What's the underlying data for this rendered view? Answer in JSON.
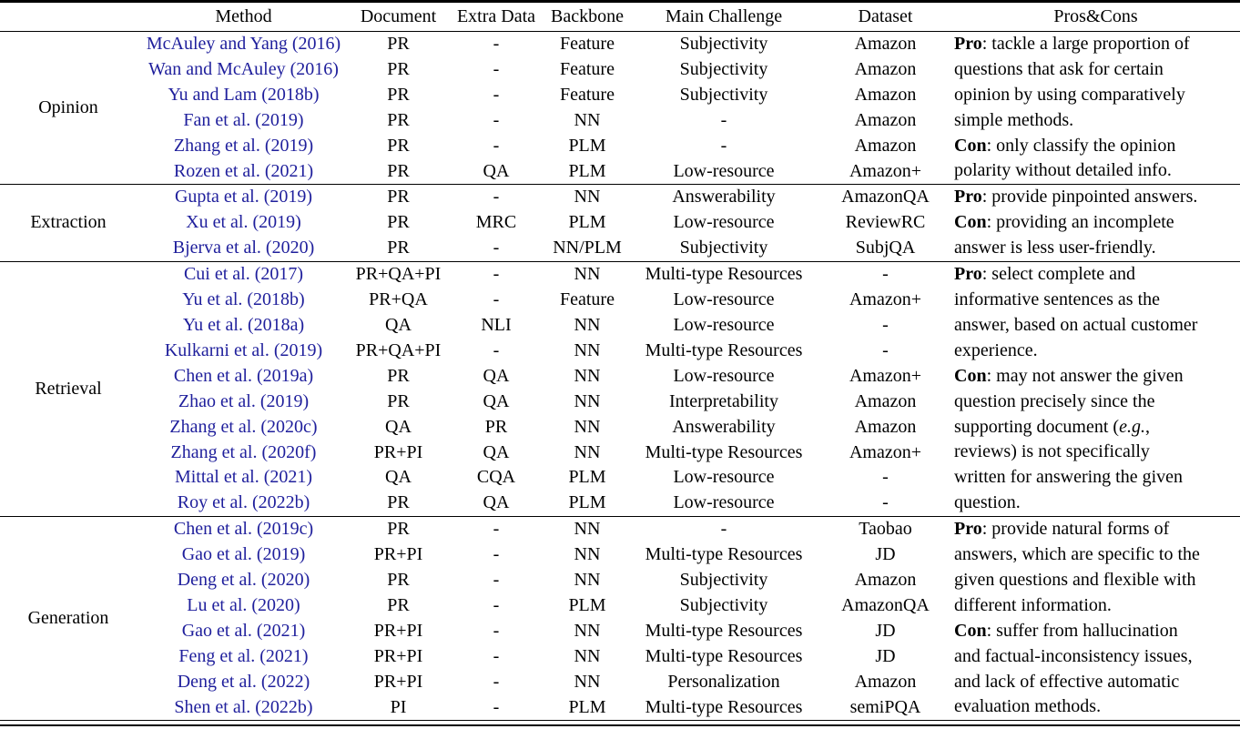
{
  "colors": {
    "citation_link": "#1f1f9c",
    "rule": "#000000",
    "text": "#000000",
    "background": "#ffffff"
  },
  "table": {
    "columns": [
      "",
      "Method",
      "Document",
      "Extra Data",
      "Backbone",
      "Main Challenge",
      "Dataset",
      "Pros&Cons"
    ],
    "sections": [
      {
        "category": "Opinion",
        "rows": [
          {
            "method": "McAuley and Yang (2016)",
            "document": "PR",
            "extra_data": "-",
            "backbone": "Feature",
            "main_challenge": "Subjectivity",
            "dataset": "Amazon"
          },
          {
            "method": "Wan and McAuley (2016)",
            "document": "PR",
            "extra_data": "-",
            "backbone": "Feature",
            "main_challenge": "Subjectivity",
            "dataset": "Amazon"
          },
          {
            "method": "Yu and Lam (2018b)",
            "document": "PR",
            "extra_data": "-",
            "backbone": "Feature",
            "main_challenge": "Subjectivity",
            "dataset": "Amazon"
          },
          {
            "method": "Fan et al. (2019)",
            "document": "PR",
            "extra_data": "-",
            "backbone": "NN",
            "main_challenge": "-",
            "dataset": "Amazon"
          },
          {
            "method": "Zhang et al. (2019)",
            "document": "PR",
            "extra_data": "-",
            "backbone": "PLM",
            "main_challenge": "-",
            "dataset": "Amazon"
          },
          {
            "method": "Rozen et al. (2021)",
            "document": "PR",
            "extra_data": "QA",
            "backbone": "PLM",
            "main_challenge": "Low-resource",
            "dataset": "Amazon+"
          }
        ],
        "pros_cons_lines": [
          [
            {
              "t": "Pro",
              "b": true
            },
            {
              "t": ": tackle a large proportion of"
            }
          ],
          [
            {
              "t": "questions that ask for certain"
            }
          ],
          [
            {
              "t": "opinion by using comparatively"
            }
          ],
          [
            {
              "t": "simple methods."
            }
          ],
          [
            {
              "t": "Con",
              "b": true
            },
            {
              "t": ": only classify the opinion"
            }
          ],
          [
            {
              "t": "polarity without detailed info."
            }
          ]
        ]
      },
      {
        "category": "Extraction",
        "rows": [
          {
            "method": "Gupta et al. (2019)",
            "document": "PR",
            "extra_data": "-",
            "backbone": "NN",
            "main_challenge": "Answerability",
            "dataset": "AmazonQA"
          },
          {
            "method": "Xu et al. (2019)",
            "document": "PR",
            "extra_data": "MRC",
            "backbone": "PLM",
            "main_challenge": "Low-resource",
            "dataset": "ReviewRC"
          },
          {
            "method": "Bjerva et al. (2020)",
            "document": "PR",
            "extra_data": "-",
            "backbone": "NN/PLM",
            "main_challenge": "Subjectivity",
            "dataset": "SubjQA"
          }
        ],
        "pros_cons_lines": [
          [
            {
              "t": "Pro",
              "b": true
            },
            {
              "t": ": provide pinpointed answers."
            }
          ],
          [
            {
              "t": "Con",
              "b": true
            },
            {
              "t": ": providing an incomplete"
            }
          ],
          [
            {
              "t": "answer is less user-friendly."
            }
          ]
        ]
      },
      {
        "category": "Retrieval",
        "rows": [
          {
            "method": "Cui et al. (2017)",
            "document": "PR+QA+PI",
            "extra_data": "-",
            "backbone": "NN",
            "main_challenge": "Multi-type Resources",
            "dataset": "-"
          },
          {
            "method": "Yu et al. (2018b)",
            "document": "PR+QA",
            "extra_data": "-",
            "backbone": "Feature",
            "main_challenge": "Low-resource",
            "dataset": "Amazon+"
          },
          {
            "method": "Yu et al. (2018a)",
            "document": "QA",
            "extra_data": "NLI",
            "backbone": "NN",
            "main_challenge": "Low-resource",
            "dataset": "-"
          },
          {
            "method": "Kulkarni et al. (2019)",
            "document": "PR+QA+PI",
            "extra_data": "-",
            "backbone": "NN",
            "main_challenge": "Multi-type Resources",
            "dataset": "-"
          },
          {
            "method": "Chen et al. (2019a)",
            "document": "PR",
            "extra_data": "QA",
            "backbone": "NN",
            "main_challenge": "Low-resource",
            "dataset": "Amazon+"
          },
          {
            "method": "Zhao et al. (2019)",
            "document": "PR",
            "extra_data": "QA",
            "backbone": "NN",
            "main_challenge": "Interpretability",
            "dataset": "Amazon"
          },
          {
            "method": "Zhang et al. (2020c)",
            "document": "QA",
            "extra_data": "PR",
            "backbone": "NN",
            "main_challenge": "Answerability",
            "dataset": "Amazon"
          },
          {
            "method": "Zhang et al. (2020f)",
            "document": "PR+PI",
            "extra_data": "QA",
            "backbone": "NN",
            "main_challenge": "Multi-type Resources",
            "dataset": "Amazon+"
          },
          {
            "method": "Mittal et al. (2021)",
            "document": "QA",
            "extra_data": "CQA",
            "backbone": "PLM",
            "main_challenge": "Low-resource",
            "dataset": "-"
          },
          {
            "method": "Roy et al. (2022b)",
            "document": "PR",
            "extra_data": "QA",
            "backbone": "PLM",
            "main_challenge": "Low-resource",
            "dataset": "-"
          }
        ],
        "pros_cons_lines": [
          [
            {
              "t": "Pro",
              "b": true
            },
            {
              "t": ": select complete and"
            }
          ],
          [
            {
              "t": "informative sentences as the"
            }
          ],
          [
            {
              "t": "answer, based on actual customer"
            }
          ],
          [
            {
              "t": "experience."
            }
          ],
          [
            {
              "t": "Con",
              "b": true
            },
            {
              "t": ": may not answer the given"
            }
          ],
          [
            {
              "t": "question precisely since the"
            }
          ],
          [
            {
              "t": "supporting document ("
            },
            {
              "t": "e.g.",
              "i": true
            },
            {
              "t": ","
            }
          ],
          [
            {
              "t": "reviews) is not specifically"
            }
          ],
          [
            {
              "t": "written for answering the given"
            }
          ],
          [
            {
              "t": "question."
            }
          ]
        ]
      },
      {
        "category": "Generation",
        "rows": [
          {
            "method": "Chen et al. (2019c)",
            "document": "PR",
            "extra_data": "-",
            "backbone": "NN",
            "main_challenge": "-",
            "dataset": "Taobao"
          },
          {
            "method": "Gao et al. (2019)",
            "document": "PR+PI",
            "extra_data": "-",
            "backbone": "NN",
            "main_challenge": "Multi-type Resources",
            "dataset": "JD"
          },
          {
            "method": "Deng et al. (2020)",
            "document": "PR",
            "extra_data": "-",
            "backbone": "NN",
            "main_challenge": "Subjectivity",
            "dataset": "Amazon"
          },
          {
            "method": "Lu et al. (2020)",
            "document": "PR",
            "extra_data": "-",
            "backbone": "PLM",
            "main_challenge": "Subjectivity",
            "dataset": "AmazonQA"
          },
          {
            "method": "Gao et al. (2021)",
            "document": "PR+PI",
            "extra_data": "-",
            "backbone": "NN",
            "main_challenge": "Multi-type Resources",
            "dataset": "JD"
          },
          {
            "method": "Feng et al. (2021)",
            "document": "PR+PI",
            "extra_data": "-",
            "backbone": "NN",
            "main_challenge": "Multi-type Resources",
            "dataset": "JD"
          },
          {
            "method": "Deng et al. (2022)",
            "document": "PR+PI",
            "extra_data": "-",
            "backbone": "NN",
            "main_challenge": "Personalization",
            "dataset": "Amazon"
          },
          {
            "method": "Shen et al. (2022b)",
            "document": "PI",
            "extra_data": "-",
            "backbone": "PLM",
            "main_challenge": "Multi-type Resources",
            "dataset": "semiPQA"
          }
        ],
        "pros_cons_lines": [
          [
            {
              "t": "Pro",
              "b": true
            },
            {
              "t": ": provide natural forms of"
            }
          ],
          [
            {
              "t": "answers, which are specific to the"
            }
          ],
          [
            {
              "t": "given questions and flexible with"
            }
          ],
          [
            {
              "t": "different information."
            }
          ],
          [
            {
              "t": "Con",
              "b": true
            },
            {
              "t": ": suffer from hallucination"
            }
          ],
          [
            {
              "t": "and factual-inconsistency issues,"
            }
          ],
          [
            {
              "t": "and lack of effective automatic"
            }
          ],
          [
            {
              "t": "evaluation methods."
            }
          ]
        ]
      }
    ]
  }
}
